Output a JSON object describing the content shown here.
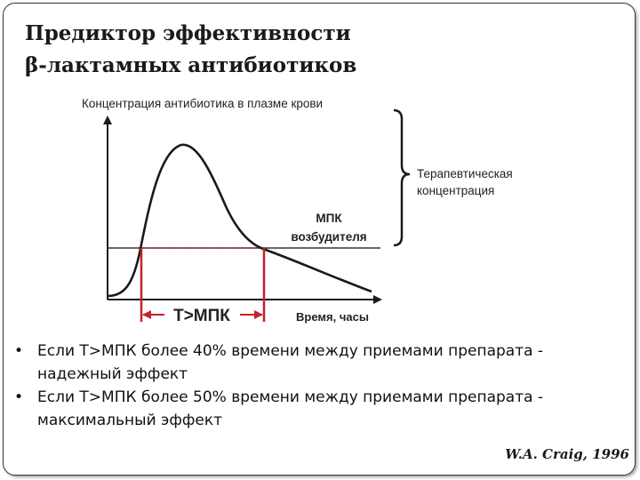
{
  "title": {
    "line1": "Предиктор эффективности",
    "line2": "β-лактамных антибиотиков"
  },
  "diagram": {
    "y_axis_label": "Концентрация антибиотика в плазме крови",
    "x_axis_label": "Время, часы",
    "bracket_label_line1": "Терапевтическая",
    "bracket_label_line2": "концентрация",
    "mic_label_line1": "МПК",
    "mic_label_line2": "возбудителя",
    "interval_label": "T>МПК",
    "colors": {
      "curve": "#1a1a1a",
      "interval": "#c8202a",
      "mic_line": "#333333"
    }
  },
  "bullets": [
    {
      "line1": "Если T>МПК более 40% времени между приемами препарата -",
      "line2": "надежный эффект"
    },
    {
      "line1": "Если T>МПК более 50% времени между приемами препарата  -",
      "line2": "максимальный эффект"
    }
  ],
  "citation": "W.A. Craig, 1996"
}
